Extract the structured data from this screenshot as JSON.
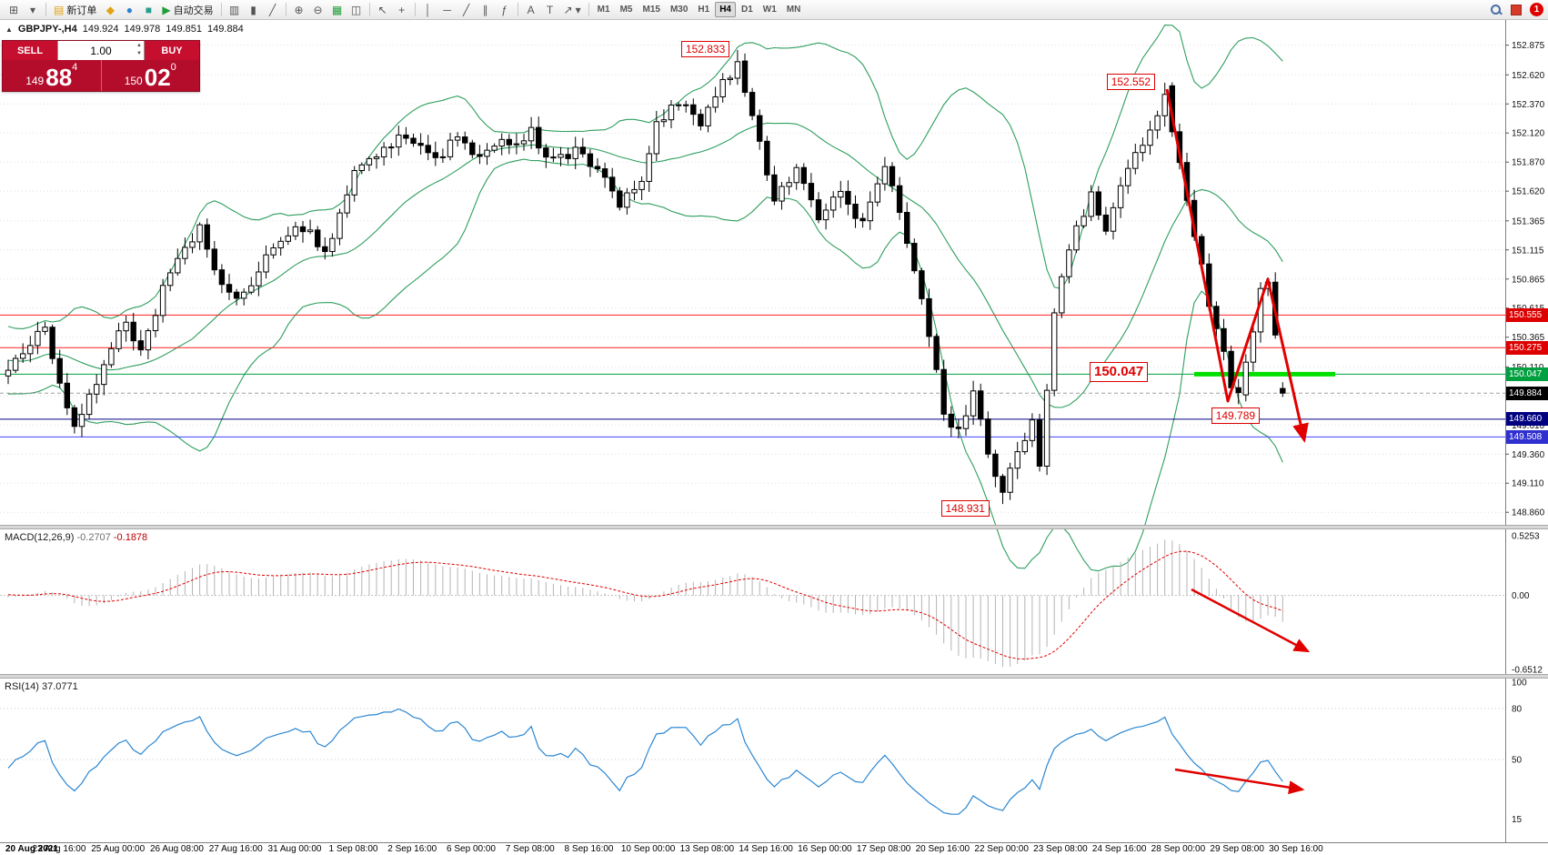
{
  "icons": {
    "quote_toggle": "▲",
    "new_chart": "⊞",
    "profiles": "▾",
    "new_order": "▤",
    "mql5": "◆",
    "chat": "●",
    "market": "■",
    "autotrading_play": "▶",
    "bars_chart": "▥",
    "candle_chart": "▮",
    "line_chart": "╱",
    "zoom_in": "⊕",
    "zoom_out": "⊖",
    "indicators": "▦",
    "tile_windows": "◫",
    "cursor": "↖",
    "crosshair": "+",
    "vertical_line": "│",
    "horizontal_line": "─",
    "trendline": "╱",
    "channel": "∥",
    "fibonacci": "ƒ",
    "text": "A",
    "text_label": "T",
    "arrows": "↗",
    "dropdown": "▾"
  },
  "toolbar": {
    "new_order_label": "新订单",
    "autotrading_label": "自动交易",
    "timeframes": [
      "M1",
      "M5",
      "M15",
      "M30",
      "H1",
      "H4",
      "D1",
      "W1",
      "MN"
    ],
    "active_timeframe": "H4",
    "notification_count": "1"
  },
  "quote": {
    "symbol": "GBPJPY-,H4",
    "open": "149.924",
    "high": "149.978",
    "low": "149.851",
    "close": "149.884"
  },
  "trade_panel": {
    "sell_label": "SELL",
    "buy_label": "BUY",
    "volume": "1.00",
    "bid_main": "149",
    "bid_big": "88",
    "bid_sup": "4",
    "ask_main": "150",
    "ask_big": "02",
    "ask_sup": "0"
  },
  "main": {
    "price_ticks": [
      "152.875",
      "152.620",
      "152.370",
      "152.120",
      "151.870",
      "151.620",
      "151.365",
      "151.115",
      "150.865",
      "150.615",
      "150.365",
      "150.110",
      "149.860",
      "149.610",
      "149.360",
      "149.110",
      "148.860"
    ],
    "levels": [
      {
        "label": "150.555",
        "price": 150.555,
        "color": "#dd0000",
        "line": "#ff2020"
      },
      {
        "label": "150.275",
        "price": 150.275,
        "color": "#dd0000",
        "line": "#ff2020"
      },
      {
        "label": "150.047",
        "price": 150.047,
        "color": "#00a040",
        "line": "#00a040",
        "thick": true
      },
      {
        "label": "149.884",
        "price": 149.884,
        "color": "#000000",
        "line": "#a0a0a0",
        "current": true
      },
      {
        "label": "149.660",
        "price": 149.66,
        "color": "#000080",
        "line": "#000080"
      },
      {
        "label": "149.508",
        "price": 149.508,
        "color": "#3030d0",
        "line": "#4040ff"
      }
    ],
    "annotations": [
      {
        "text": "152.833",
        "price": 152.833
      },
      {
        "text": "152.552",
        "price": 152.552
      },
      {
        "text": "150.047",
        "price": 150.047,
        "big": true
      },
      {
        "text": "149.789",
        "price": 149.789
      },
      {
        "text": "148.931",
        "price": 148.931
      }
    ]
  },
  "macd": {
    "label": "MACD(12,26,9)",
    "value": "-0.2707",
    "signal_value": "-0.1878",
    "scale": [
      "0.5253",
      "0.00",
      "-0.6512"
    ]
  },
  "rsi": {
    "label": "RSI(14)",
    "value": "37.0771",
    "scale": [
      "100",
      "80",
      "50",
      "15"
    ]
  },
  "time_axis": {
    "labels": [
      "20 Aug 2021",
      "23 Aug 16:00",
      "25 Aug 00:00",
      "26 Aug 08:00",
      "27 Aug 16:00",
      "31 Aug 00:00",
      "1 Sep 08:00",
      "2 Sep 16:00",
      "6 Sep 00:00",
      "7 Sep 08:00",
      "8 Sep 16:00",
      "10 Sep 00:00",
      "13 Sep 08:00",
      "14 Sep 16:00",
      "16 Sep 00:00",
      "17 Sep 08:00",
      "20 Sep 16:00",
      "22 Sep 00:00",
      "23 Sep 08:00",
      "24 Sep 16:00",
      "28 Sep 00:00",
      "29 Sep 08:00",
      "30 Sep 16:00"
    ]
  },
  "chart_data": {
    "type": "candlestick",
    "symbol": "GBPJPY",
    "timeframe": "H4",
    "indicators": [
      "Bollinger Bands(20,2)",
      "MACD(12,26,9)",
      "RSI(14)"
    ],
    "y_axis_range": [
      148.76,
      153.06
    ],
    "candle_count": 171,
    "current_bar": {
      "open": 149.924,
      "high": 149.978,
      "low": 149.851,
      "close": 149.884
    },
    "extremes": {
      "peak": {
        "index": 96,
        "price": 152.833
      },
      "trough": {
        "index": 132,
        "price": 148.931
      },
      "second_peak": {
        "index": 154,
        "price": 152.552
      },
      "second_trough": {
        "index": 164,
        "price": 149.789
      }
    },
    "key_levels": [
      150.555,
      150.275,
      150.047,
      149.884,
      149.66,
      149.508
    ],
    "macd_last": {
      "macd": -0.2707,
      "signal": -0.1878,
      "scale_max": 0.5253,
      "scale_min": -0.6512
    },
    "rsi_last": 37.0771,
    "price_path_anchors": [
      [
        -36,
        150.3
      ],
      [
        -30,
        149.7
      ],
      [
        -24,
        150.5
      ],
      [
        -18,
        149.9
      ],
      [
        -10,
        150.45
      ],
      [
        -5,
        150.0
      ],
      [
        0,
        150.32
      ],
      [
        2,
        150.45
      ],
      [
        4,
        149.92
      ],
      [
        6,
        149.55
      ],
      [
        9,
        149.98
      ],
      [
        13,
        150.5
      ],
      [
        15,
        150.22
      ],
      [
        19,
        150.95
      ],
      [
        23,
        151.32
      ],
      [
        26,
        150.78
      ],
      [
        29,
        150.72
      ],
      [
        33,
        151.18
      ],
      [
        37,
        151.32
      ],
      [
        40,
        151.08
      ],
      [
        44,
        151.78
      ],
      [
        48,
        151.98
      ],
      [
        51,
        152.12
      ],
      [
        55,
        151.88
      ],
      [
        58,
        152.08
      ],
      [
        61,
        151.92
      ],
      [
        64,
        152.02
      ],
      [
        68,
        152.12
      ],
      [
        71,
        151.88
      ],
      [
        74,
        151.98
      ],
      [
        77,
        151.78
      ],
      [
        80,
        151.52
      ],
      [
        83,
        151.72
      ],
      [
        85,
        152.22
      ],
      [
        88,
        152.38
      ],
      [
        91,
        152.22
      ],
      [
        93,
        152.48
      ],
      [
        96,
        152.72
      ],
      [
        98,
        152.25
      ],
      [
        101,
        151.55
      ],
      [
        104,
        151.78
      ],
      [
        107,
        151.42
      ],
      [
        110,
        151.62
      ],
      [
        113,
        151.32
      ],
      [
        116,
        151.85
      ],
      [
        118,
        151.42
      ],
      [
        121,
        150.72
      ],
      [
        124,
        149.72
      ],
      [
        126,
        149.55
      ],
      [
        128,
        149.92
      ],
      [
        130,
        149.32
      ],
      [
        132,
        149.05
      ],
      [
        134,
        149.35
      ],
      [
        136,
        149.62
      ],
      [
        137,
        149.22
      ],
      [
        139,
        150.62
      ],
      [
        140,
        150.88
      ],
      [
        142,
        151.32
      ],
      [
        144,
        151.58
      ],
      [
        146,
        151.28
      ],
      [
        148,
        151.62
      ],
      [
        150,
        151.95
      ],
      [
        152,
        152.12
      ],
      [
        154,
        152.5
      ],
      [
        156,
        151.85
      ],
      [
        158,
        151.22
      ],
      [
        160,
        150.68
      ],
      [
        162,
        150.28
      ],
      [
        163,
        149.92
      ],
      [
        164,
        149.85
      ],
      [
        166,
        150.38
      ],
      [
        167,
        150.78
      ],
      [
        168,
        150.88
      ],
      [
        169,
        150.35
      ],
      [
        170,
        149.92
      ]
    ]
  }
}
